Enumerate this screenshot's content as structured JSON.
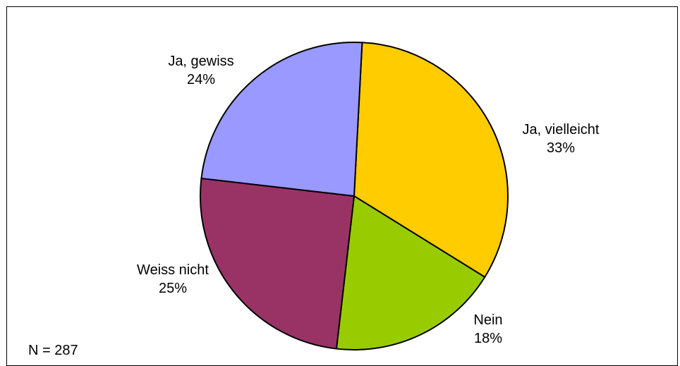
{
  "chart_data": {
    "type": "pie",
    "title": "",
    "start_angle_deg": 3,
    "direction": "clockwise",
    "slices": [
      {
        "label": "Ja, vielleicht",
        "value": 33,
        "value_label": "33%",
        "color": "#FFCC00"
      },
      {
        "label": "Nein",
        "value": 18,
        "value_label": "18%",
        "color": "#99CC00"
      },
      {
        "label": "Weiss nicht",
        "value": 25,
        "value_label": "25%",
        "color": "#993366"
      },
      {
        "label": "Ja, gewiss",
        "value": 24,
        "value_label": "24%",
        "color": "#9999FF"
      }
    ]
  },
  "note": "N = 287"
}
